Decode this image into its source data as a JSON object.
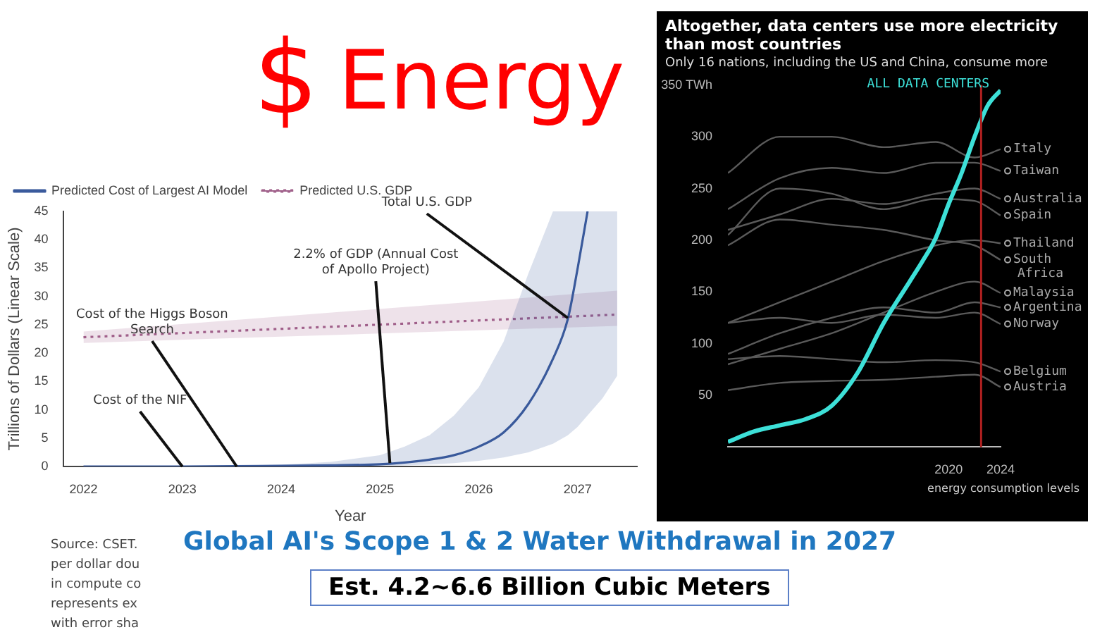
{
  "chart_data": [
    {
      "type": "line",
      "xlabel": "Year",
      "ylabel": "Trillions of Dollars (Linear Scale)",
      "xlim": [
        2021.8,
        2027.6
      ],
      "xticks": [
        2022,
        2023,
        2024,
        2025,
        2026,
        2027
      ],
      "ylim": [
        0,
        45
      ],
      "yticks": [
        0,
        5,
        10,
        15,
        20,
        25,
        30,
        35,
        40,
        45
      ],
      "grid": false,
      "legend": "top left",
      "marker": "none",
      "series": [
        {
          "name": "Predicted Cost of Largest AI Model",
          "color": "#3a5a9c",
          "line_style": "solid",
          "x": [
            2022,
            2023,
            2024,
            2024.5,
            2025,
            2025.25,
            2025.5,
            2025.75,
            2026,
            2026.25,
            2026.5,
            2026.75,
            2026.9,
            2027,
            2027.1,
            2027.25,
            2027.4
          ],
          "values": [
            0,
            0,
            0.1,
            0.2,
            0.4,
            0.7,
            1.2,
            2,
            3.5,
            6,
            11,
            19,
            26,
            35,
            45,
            null,
            null
          ],
          "lower": [
            0,
            0,
            0,
            0.1,
            0.1,
            0.2,
            0.35,
            0.6,
            1,
            1.6,
            2.5,
            4,
            5.5,
            7,
            9,
            12,
            16
          ],
          "upper": [
            0,
            0.05,
            0.3,
            0.8,
            2,
            3.5,
            5.5,
            9,
            14,
            22,
            34,
            45,
            45,
            45,
            45,
            45,
            45
          ]
        },
        {
          "name": "Predicted U.S. GDP",
          "color": "#a0608a",
          "line_style": "dotted",
          "x": [
            2022,
            2027.4
          ],
          "values": [
            22.8,
            26.8
          ],
          "lower": [
            21.8,
            24.8
          ],
          "upper": [
            23.8,
            31
          ]
        }
      ],
      "annotations": [
        {
          "text": "Total U.S. GDP",
          "x": 2026.9,
          "y": 26.2
        },
        {
          "text": "2.2% of GDP (Annual Cost of Apollo Project)",
          "x": 2025.1,
          "y": 0.6
        },
        {
          "text": "Cost of the Higgs Boson Search",
          "x": 2023.55,
          "y": 0
        },
        {
          "text": "Cost of the NIF",
          "x": 2023,
          "y": 0
        }
      ]
    },
    {
      "type": "line",
      "title": "Altogether, data centers use more electricity than most countries",
      "subtitle": "Only 16 nations, including the US and China, consume more",
      "xlim": [
        2003,
        2024
      ],
      "xticks": [
        2020,
        2024
      ],
      "ylim": [
        0,
        350
      ],
      "yticks": [
        50,
        100,
        150,
        200,
        250,
        300,
        {
          "value": 350,
          "label": "350 TWh"
        }
      ],
      "grid": false,
      "legend": false,
      "marker": "none",
      "ref_lines": [
        {
          "axis": "x",
          "value": 2022.5,
          "color": "#b02020"
        }
      ],
      "series": [
        {
          "name": "ALL DATA CENTERS",
          "color": "#3de0d8",
          "x": [
            2003,
            2005,
            2007,
            2009,
            2011,
            2013,
            2015,
            2017,
            2018,
            2019,
            2020,
            2021,
            2022,
            2023,
            2024
          ],
          "values": [
            5,
            15,
            21,
            27,
            40,
            72,
            120,
            160,
            180,
            202,
            235,
            265,
            300,
            330,
            345
          ]
        },
        {
          "name": "Italy",
          "color": "#5a5a5a",
          "x": [
            2003,
            2007,
            2011,
            2015,
            2019,
            2022,
            2024
          ],
          "values": [
            265,
            300,
            300,
            290,
            295,
            280,
            288
          ]
        },
        {
          "name": "Taiwan",
          "color": "#5a5a5a",
          "x": [
            2003,
            2007,
            2011,
            2015,
            2019,
            2022,
            2024
          ],
          "values": [
            230,
            260,
            270,
            265,
            275,
            275,
            267
          ]
        },
        {
          "name": "Australia",
          "color": "#5a5a5a",
          "x": [
            2003,
            2007,
            2011,
            2015,
            2019,
            2022,
            2024
          ],
          "values": [
            210,
            225,
            240,
            235,
            245,
            250,
            240
          ]
        },
        {
          "name": "Spain",
          "color": "#5a5a5a",
          "x": [
            2003,
            2007,
            2011,
            2015,
            2019,
            2022,
            2024
          ],
          "values": [
            205,
            250,
            245,
            230,
            240,
            238,
            224
          ]
        },
        {
          "name": "Thailand",
          "color": "#5a5a5a",
          "x": [
            2003,
            2007,
            2011,
            2015,
            2019,
            2022,
            2024
          ],
          "values": [
            120,
            140,
            160,
            180,
            195,
            200,
            197
          ]
        },
        {
          "name": "South Africa",
          "color": "#5a5a5a",
          "x": [
            2003,
            2007,
            2011,
            2015,
            2019,
            2022,
            2024
          ],
          "values": [
            195,
            220,
            215,
            210,
            200,
            195,
            181
          ]
        },
        {
          "name": "Malaysia",
          "color": "#5a5a5a",
          "x": [
            2003,
            2007,
            2011,
            2015,
            2019,
            2022,
            2024
          ],
          "values": [
            80,
            95,
            110,
            130,
            150,
            160,
            149
          ]
        },
        {
          "name": "Argentina",
          "color": "#5a5a5a",
          "x": [
            2003,
            2007,
            2011,
            2015,
            2019,
            2022,
            2024
          ],
          "values": [
            90,
            110,
            125,
            135,
            130,
            140,
            135
          ]
        },
        {
          "name": "Norway",
          "color": "#5a5a5a",
          "x": [
            2003,
            2007,
            2011,
            2015,
            2019,
            2022,
            2024
          ],
          "values": [
            120,
            125,
            120,
            128,
            125,
            130,
            119
          ]
        },
        {
          "name": "Belgium",
          "color": "#5a5a5a",
          "x": [
            2003,
            2007,
            2011,
            2015,
            2019,
            2022,
            2024
          ],
          "values": [
            85,
            88,
            85,
            82,
            84,
            82,
            73
          ]
        },
        {
          "name": "Austria",
          "color": "#5a5a5a",
          "x": [
            2003,
            2007,
            2011,
            2015,
            2019,
            2022,
            2024
          ],
          "values": [
            55,
            62,
            64,
            65,
            68,
            70,
            58
          ]
        }
      ],
      "annotations": [
        "energy consumption levels"
      ]
    },
    {
      "type": "other",
      "title": "Global AI's Scope 1 & 2 Water Withdrawal in 2027",
      "subtitle": "Est. 4.2~6.6 Billion Cubic Meters",
      "annotations": [
        "$",
        "Energy",
        "Source: CSET.",
        "per dollar dou",
        "in compute co",
        "represents ex",
        "with error sha"
      ]
    }
  ]
}
